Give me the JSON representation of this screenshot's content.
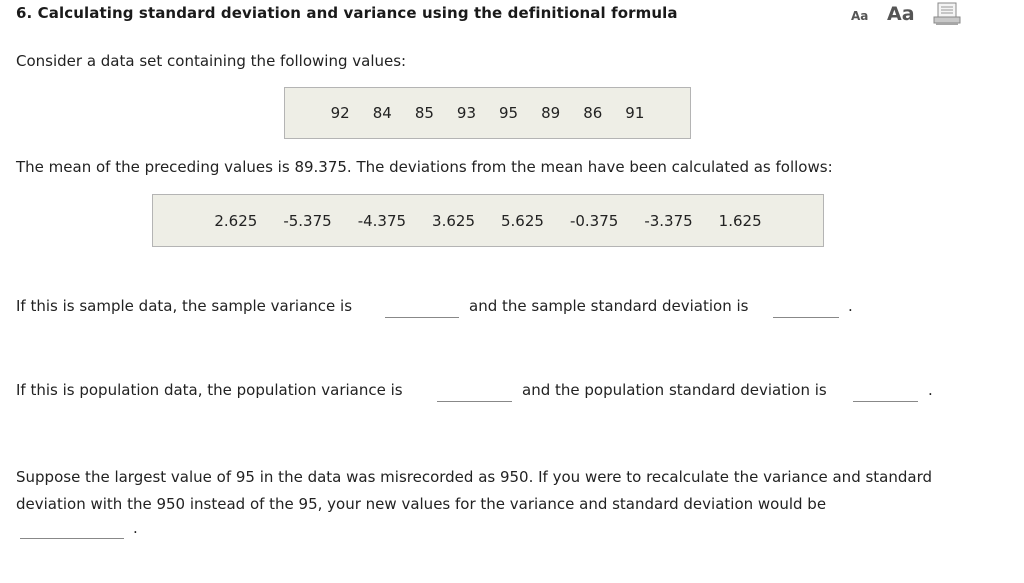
{
  "question": {
    "title": "6. Calculating standard deviation and variance using the definitional formula",
    "intro": "Consider a data set containing the following values:",
    "values": [
      "92",
      "84",
      "85",
      "93",
      "95",
      "89",
      "86",
      "91"
    ],
    "mean_text": "The mean of the preceding values is 89.375. The deviations from the mean have been calculated as follows:",
    "deviations": [
      "2.625",
      "-5.375",
      "-4.375",
      "3.625",
      "5.625",
      "-0.375",
      "-3.375",
      "1.625"
    ],
    "sample_variance_label": "If this is sample data, the sample variance is",
    "sample_sd_label": "and the sample standard deviation is",
    "population_variance_label": "If this is population data, the population variance is",
    "population_sd_label": "and the population standard deviation is",
    "period": ".",
    "misrecord_paragraph": "Suppose the largest value of 95 in the data was misrecorded as 950. If you were to recalculate the variance and standard deviation with the 950 instead of the 95, your new values for the variance and standard deviation would be"
  },
  "toolbar": {
    "font_small_label": "Aa",
    "font_large_label": "Aa",
    "print_icon": "printer-icon"
  },
  "answers": {
    "sample_variance": "",
    "sample_sd": "",
    "population_variance": "",
    "population_sd": "",
    "misrecord_effect": ""
  }
}
